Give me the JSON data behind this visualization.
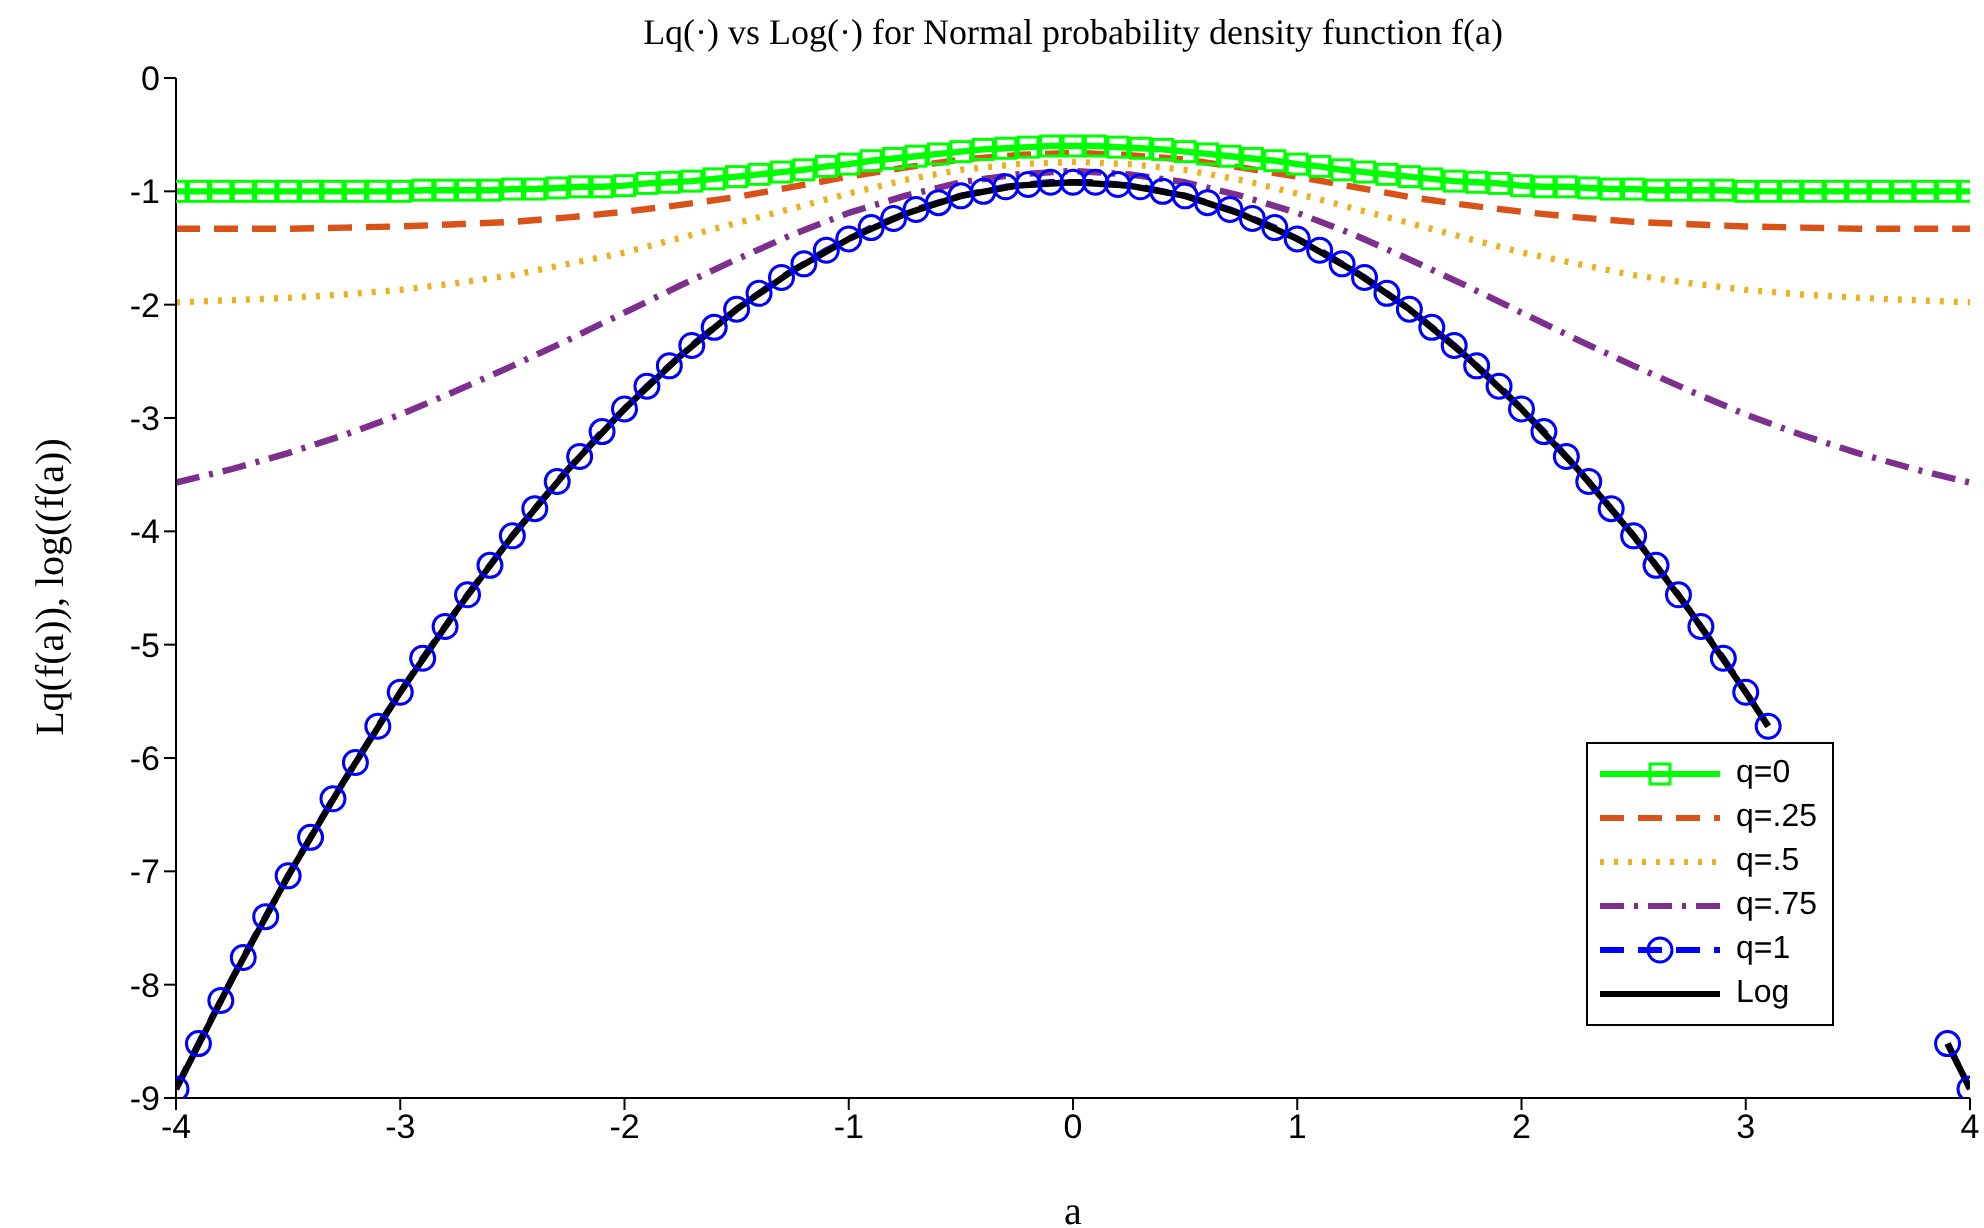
{
  "chart_data": {
    "type": "line",
    "title": "Lq(·) vs Log(·) for Normal probability density function f(a)",
    "xlabel": "a",
    "ylabel": "Lq(f(a)),  log((f(a))",
    "xlim": [
      -4,
      4
    ],
    "xticks": [
      -4,
      -3,
      -2,
      -1,
      0,
      1,
      2,
      3,
      4
    ],
    "ylim": [
      -9,
      0
    ],
    "yticks": [
      -9,
      -8,
      -7,
      -6,
      -5,
      -4,
      -3,
      -2,
      -1,
      0
    ],
    "grid": false,
    "legend": "bottom right",
    "series": [
      {
        "name": "q=0",
        "color": "#00ff00",
        "marker": "square",
        "line_style": "solid",
        "x": [
          -4,
          -3.9,
          -3.8,
          -3.7,
          -3.6,
          -3.5,
          -3.4,
          -3.3,
          -3.2,
          -3.1,
          -3,
          -2.9,
          -2.8,
          -2.7,
          -2.6,
          -2.5,
          -2.4,
          -2.3,
          -2.2,
          -2.1,
          -2,
          -1.9,
          -1.8,
          -1.7,
          -1.6,
          -1.5,
          -1.4,
          -1.3,
          -1.2,
          -1.1,
          -1,
          -0.9,
          -0.8,
          -0.7,
          -0.6,
          -0.5,
          -0.4,
          -0.3,
          -0.2,
          -0.1,
          0,
          0.1,
          0.2,
          0.3,
          0.4,
          0.5,
          0.6,
          0.7,
          0.8,
          0.9,
          1,
          1.1,
          1.2,
          1.3,
          1.4,
          1.5,
          1.6,
          1.7,
          1.8,
          1.9,
          2,
          2.1,
          2.2,
          2.3,
          2.4,
          2.5,
          2.6,
          2.7,
          2.8,
          2.9,
          3,
          3.1,
          3.2,
          3.3,
          3.4,
          3.5,
          3.6,
          3.7,
          3.8,
          3.9,
          4
        ],
        "values": [
          -1,
          -1,
          -1,
          -1,
          -1,
          -1,
          -1,
          -1,
          -1,
          -1,
          -1,
          -0.99,
          -0.99,
          -0.99,
          -0.99,
          -0.98,
          -0.98,
          -0.97,
          -0.96,
          -0.96,
          -0.95,
          -0.93,
          -0.92,
          -0.91,
          -0.89,
          -0.87,
          -0.85,
          -0.83,
          -0.81,
          -0.78,
          -0.76,
          -0.73,
          -0.71,
          -0.69,
          -0.67,
          -0.65,
          -0.63,
          -0.62,
          -0.61,
          -0.6,
          -0.6,
          -0.6,
          -0.61,
          -0.62,
          -0.63,
          -0.65,
          -0.67,
          -0.69,
          -0.71,
          -0.73,
          -0.76,
          -0.78,
          -0.81,
          -0.83,
          -0.85,
          -0.87,
          -0.89,
          -0.91,
          -0.92,
          -0.93,
          -0.95,
          -0.96,
          -0.96,
          -0.97,
          -0.98,
          -0.98,
          -0.99,
          -0.99,
          -0.99,
          -0.99,
          -1,
          -1,
          -1,
          -1,
          -1,
          -1,
          -1,
          -1,
          -1,
          -1,
          -1
        ]
      },
      {
        "name": "q=.25",
        "color": "#d95319",
        "marker": "none",
        "line_style": "dashed",
        "x": [
          -4,
          -3.75,
          -3.5,
          -3.25,
          -3,
          -2.75,
          -2.5,
          -2.25,
          -2,
          -1.75,
          -1.5,
          -1.25,
          -1,
          -0.75,
          -0.5,
          -0.25,
          0,
          0.25,
          0.5,
          0.75,
          1,
          1.25,
          1.5,
          1.75,
          2,
          2.25,
          2.5,
          2.75,
          3,
          3.25,
          3.5,
          3.75,
          4
        ],
        "values": [
          -1.33,
          -1.33,
          -1.33,
          -1.32,
          -1.31,
          -1.29,
          -1.27,
          -1.23,
          -1.18,
          -1.12,
          -1.05,
          -0.96,
          -0.87,
          -0.79,
          -0.72,
          -0.68,
          -0.66,
          -0.68,
          -0.72,
          -0.79,
          -0.87,
          -0.96,
          -1.05,
          -1.12,
          -1.18,
          -1.23,
          -1.27,
          -1.29,
          -1.31,
          -1.32,
          -1.33,
          -1.33,
          -1.33
        ]
      },
      {
        "name": "q=.5",
        "color": "#edb120",
        "marker": "none",
        "line_style": "dotted",
        "x": [
          -4,
          -3.75,
          -3.5,
          -3.25,
          -3,
          -2.75,
          -2.5,
          -2.25,
          -2,
          -1.75,
          -1.5,
          -1.25,
          -1,
          -0.75,
          -0.5,
          -0.25,
          0,
          0.25,
          0.5,
          0.75,
          1,
          1.25,
          1.5,
          1.75,
          2,
          2.25,
          2.5,
          2.75,
          3,
          3.25,
          3.5,
          3.75,
          4
        ],
        "values": [
          -1.98,
          -1.96,
          -1.94,
          -1.91,
          -1.87,
          -1.81,
          -1.74,
          -1.64,
          -1.54,
          -1.41,
          -1.28,
          -1.15,
          -1.02,
          -0.9,
          -0.81,
          -0.76,
          -0.74,
          -0.76,
          -0.81,
          -0.9,
          -1.02,
          -1.15,
          -1.28,
          -1.41,
          -1.54,
          -1.64,
          -1.74,
          -1.81,
          -1.87,
          -1.91,
          -1.94,
          -1.96,
          -1.98
        ]
      },
      {
        "name": "q=.75",
        "color": "#7e2f8e",
        "marker": "none",
        "line_style": "dashdot",
        "x": [
          -4,
          -3.75,
          -3.5,
          -3.25,
          -3,
          -2.75,
          -2.5,
          -2.25,
          -2,
          -1.75,
          -1.5,
          -1.25,
          -1,
          -0.75,
          -0.5,
          -0.25,
          0,
          0.25,
          0.5,
          0.75,
          1,
          1.25,
          1.5,
          1.75,
          2,
          2.25,
          2.5,
          2.75,
          3,
          3.25,
          3.5,
          3.75,
          4
        ],
        "values": [
          -3.57,
          -3.45,
          -3.31,
          -3.15,
          -2.97,
          -2.76,
          -2.54,
          -2.31,
          -2.07,
          -1.83,
          -1.6,
          -1.38,
          -1.19,
          -1.04,
          -0.92,
          -0.85,
          -0.82,
          -0.85,
          -0.92,
          -1.04,
          -1.19,
          -1.38,
          -1.6,
          -1.83,
          -2.07,
          -2.31,
          -2.54,
          -2.76,
          -2.97,
          -3.15,
          -3.31,
          -3.45,
          -3.57
        ]
      },
      {
        "name": "q=1",
        "color": "#0000ff",
        "marker": "circle",
        "line_style": "dashed",
        "x": [
          -4,
          -3.9,
          -3.8,
          -3.7,
          -3.6,
          -3.5,
          -3.4,
          -3.3,
          -3.2,
          -3.1,
          -3,
          -2.9,
          -2.8,
          -2.7,
          -2.6,
          -2.5,
          -2.4,
          -2.3,
          -2.2,
          -2.1,
          -2,
          -1.9,
          -1.8,
          -1.7,
          -1.6,
          -1.5,
          -1.4,
          -1.3,
          -1.2,
          -1.1,
          -1,
          -0.9,
          -0.8,
          -0.7,
          -0.6,
          -0.5,
          -0.4,
          -0.3,
          -0.2,
          -0.1,
          0,
          0.1,
          0.2,
          0.3,
          0.4,
          0.5,
          0.6,
          0.7,
          0.8,
          0.9,
          1,
          1.1,
          1.2,
          1.3,
          1.4,
          1.5,
          1.6,
          1.7,
          1.8,
          1.9,
          2,
          2.1,
          2.2,
          2.3,
          2.4,
          2.5,
          2.6,
          2.7,
          2.8,
          2.9,
          3,
          3.1,
          3.2,
          3.3,
          3.4,
          3.5,
          3.6,
          3.7,
          3.8,
          3.9,
          4
        ],
        "values": [
          -8.92,
          -8.52,
          -8.14,
          -7.76,
          -7.4,
          -7.04,
          -6.7,
          -6.36,
          -6.04,
          -5.72,
          -5.42,
          -5.12,
          -4.84,
          -4.56,
          -4.3,
          -4.04,
          -3.8,
          -3.56,
          -3.34,
          -3.12,
          -2.92,
          -2.72,
          -2.54,
          -2.36,
          -2.2,
          -2.04,
          -1.9,
          -1.76,
          -1.64,
          -1.52,
          -1.42,
          -1.32,
          -1.24,
          -1.16,
          -1.1,
          -1.04,
          -1,
          -0.96,
          -0.94,
          -0.92,
          -0.92,
          -0.92,
          -0.94,
          -0.96,
          -1,
          -1.04,
          -1.1,
          -1.16,
          -1.24,
          -1.32,
          -1.42,
          -1.52,
          -1.64,
          -1.76,
          -1.9,
          -2.04,
          -2.2,
          -2.36,
          -2.54,
          -2.72,
          -2.92,
          -3.12,
          -3.34,
          -3.56,
          -3.8,
          -4.04,
          -4.3,
          -4.56,
          -4.84,
          -5.12,
          -5.42,
          -5.72,
          null,
          null,
          null,
          null,
          null,
          null,
          null,
          -8.52,
          -8.92
        ]
      },
      {
        "name": "Log",
        "color": "#000000",
        "marker": "none",
        "line_style": "solid",
        "x": [
          -4,
          -3.75,
          -3.5,
          -3.25,
          -3,
          -2.75,
          -2.5,
          -2.25,
          -2,
          -1.75,
          -1.5,
          -1.25,
          -1,
          -0.75,
          -0.5,
          -0.25,
          0,
          0.25,
          0.5,
          0.75,
          1,
          1.25,
          1.5,
          1.75,
          2,
          2.25,
          2.5,
          2.75,
          3,
          3.1,
          3.25,
          3.5,
          3.75,
          3.9,
          4
        ],
        "values": [
          -8.92,
          -7.95,
          -7.04,
          -6.2,
          -5.42,
          -4.7,
          -4.04,
          -3.45,
          -2.92,
          -2.45,
          -2.04,
          -1.7,
          -1.42,
          -1.2,
          -1.04,
          -0.95,
          -0.92,
          -0.95,
          -1.04,
          -1.2,
          -1.42,
          -1.7,
          -2.04,
          -2.45,
          -2.92,
          -3.45,
          -4.04,
          -4.7,
          -5.42,
          -5.72,
          null,
          null,
          null,
          -8.52,
          -8.92
        ]
      }
    ]
  }
}
